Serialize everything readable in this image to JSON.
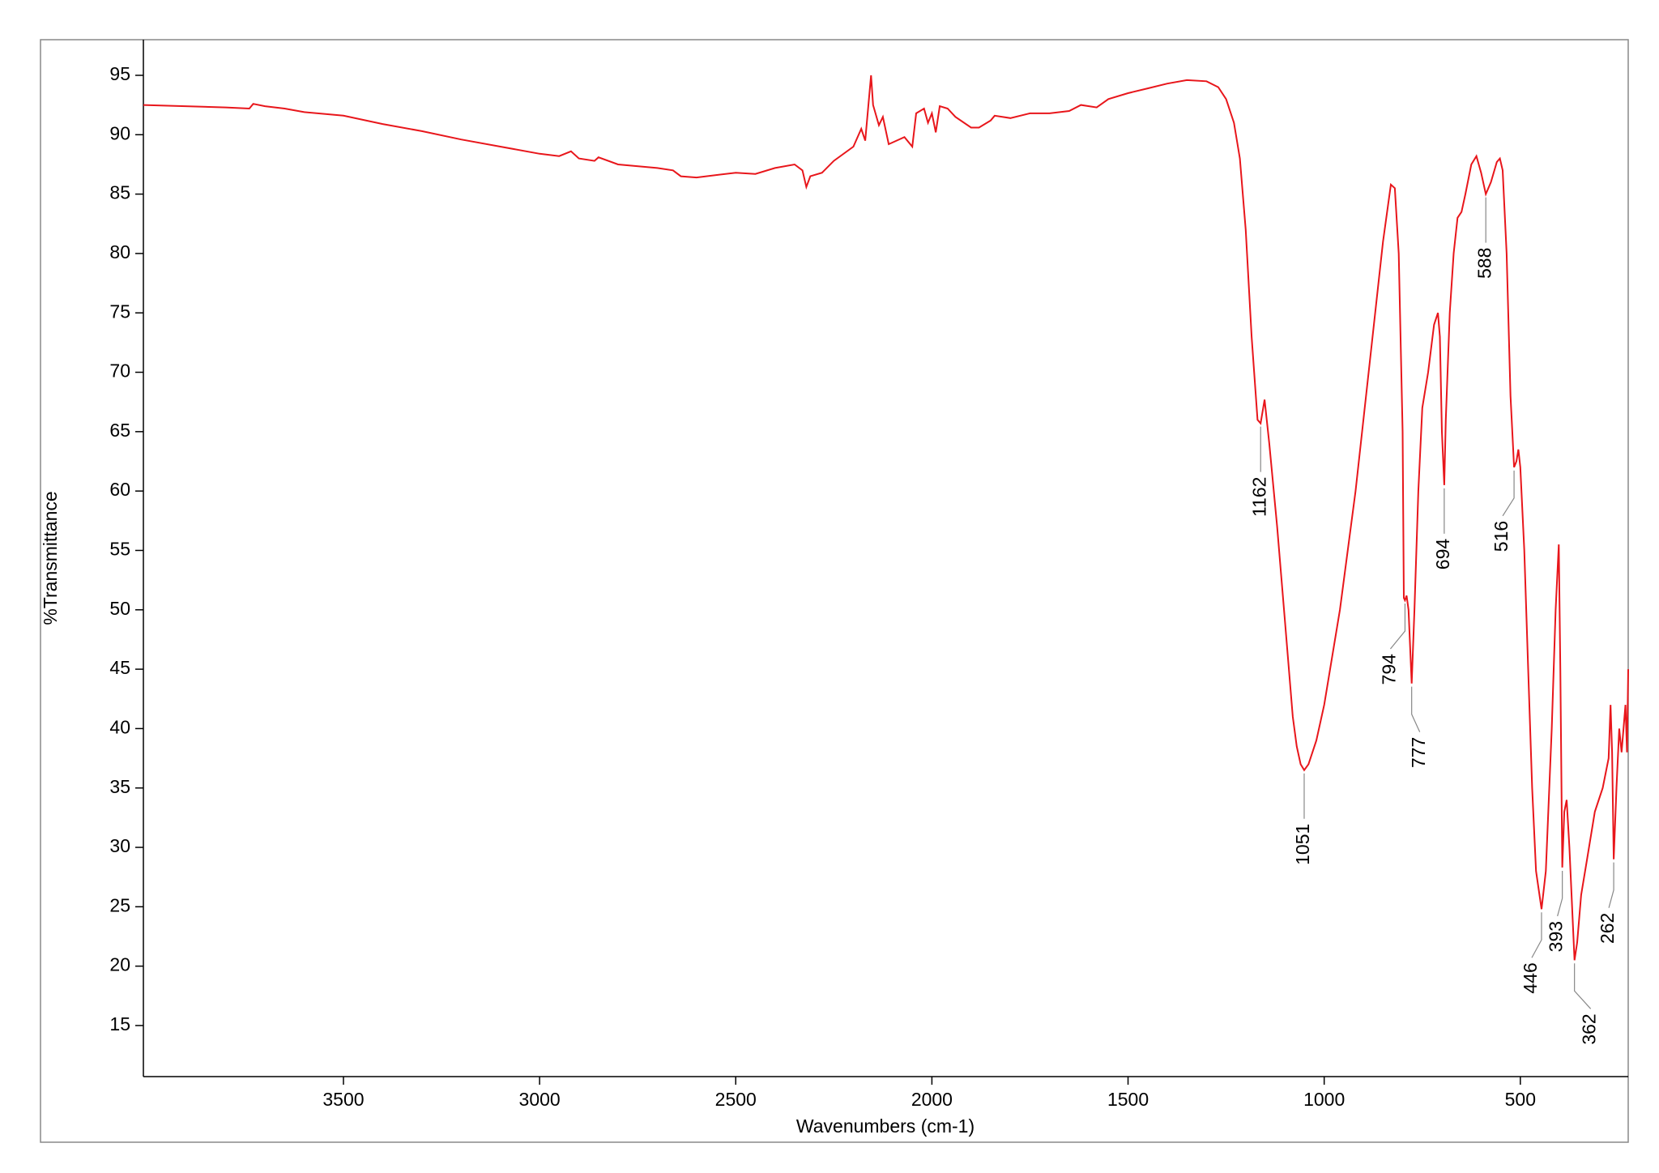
{
  "chart_data": {
    "type": "line",
    "xlabel": "Wavenumbers (cm-1)",
    "ylabel": "%Transmittance",
    "xlim": [
      4010,
      225
    ],
    "ylim": [
      10.7,
      98
    ],
    "xticks": [
      3500,
      3000,
      2500,
      2000,
      1500,
      1000,
      500
    ],
    "yticks": [
      15,
      20,
      25,
      30,
      35,
      40,
      45,
      50,
      55,
      60,
      65,
      70,
      75,
      80,
      85,
      90,
      95
    ],
    "peaks": [
      1162,
      1051,
      794,
      777,
      694,
      588,
      516,
      446,
      393,
      362,
      262
    ],
    "series": [
      {
        "color": "#e8161b",
        "x": [
          4010,
          3800,
          3740,
          3730,
          3700,
          3650,
          3600,
          3500,
          3400,
          3300,
          3200,
          3100,
          3000,
          2950,
          2920,
          2900,
          2860,
          2850,
          2800,
          2700,
          2660,
          2640,
          2600,
          2500,
          2450,
          2400,
          2350,
          2330,
          2320,
          2310,
          2280,
          2250,
          2200,
          2180,
          2170,
          2155,
          2150,
          2135,
          2125,
          2110,
          2090,
          2070,
          2050,
          2040,
          2020,
          2010,
          2000,
          1990,
          1980,
          1960,
          1940,
          1900,
          1880,
          1850,
          1840,
          1800,
          1750,
          1700,
          1650,
          1620,
          1580,
          1550,
          1500,
          1450,
          1400,
          1350,
          1300,
          1270,
          1250,
          1230,
          1215,
          1200,
          1185,
          1170,
          1162,
          1152,
          1140,
          1120,
          1100,
          1080,
          1070,
          1060,
          1051,
          1040,
          1020,
          1000,
          960,
          920,
          880,
          850,
          830,
          820,
          810,
          800,
          797,
          794,
          790,
          785,
          777,
          770,
          760,
          750,
          735,
          720,
          710,
          705,
          700,
          694,
          690,
          680,
          670,
          660,
          650,
          640,
          625,
          612,
          600,
          588,
          575,
          560,
          552,
          545,
          535,
          525,
          516,
          510,
          505,
          500,
          490,
          480,
          470,
          460,
          446,
          435,
          420,
          410,
          402,
          398,
          393,
          388,
          382,
          375,
          362,
          355,
          345,
          330,
          310,
          290,
          275,
          270,
          266,
          262,
          255,
          248,
          242,
          237,
          232,
          228,
          225
        ],
        "values": [
          92.5,
          92.3,
          92.2,
          92.6,
          92.4,
          92.2,
          91.9,
          91.6,
          90.9,
          90.3,
          89.6,
          89.0,
          88.4,
          88.2,
          88.6,
          88.0,
          87.8,
          88.1,
          87.5,
          87.2,
          87.0,
          86.5,
          86.4,
          86.8,
          86.7,
          87.2,
          87.5,
          87.0,
          85.6,
          86.5,
          86.8,
          87.8,
          89.0,
          90.5,
          89.5,
          95.0,
          92.5,
          90.8,
          91.5,
          89.2,
          89.5,
          89.8,
          89.0,
          91.8,
          92.2,
          91.0,
          91.8,
          90.2,
          92.4,
          92.2,
          91.5,
          90.6,
          90.6,
          91.2,
          91.6,
          91.4,
          91.8,
          91.8,
          92.0,
          92.5,
          92.3,
          93.0,
          93.5,
          93.9,
          94.3,
          94.6,
          94.5,
          94.0,
          93.0,
          91.0,
          88.0,
          82.0,
          73.0,
          66.0,
          65.7,
          67.7,
          64.0,
          57.0,
          49.0,
          41.0,
          38.5,
          37.0,
          36.5,
          37.0,
          39.0,
          42.0,
          50.0,
          60.0,
          72.0,
          81.0,
          85.8,
          85.5,
          80.0,
          65.0,
          51.0,
          50.8,
          51.2,
          50.0,
          43.8,
          50.0,
          60.0,
          67.0,
          70.0,
          74.0,
          75.0,
          73.0,
          65.0,
          60.5,
          66.0,
          75.0,
          80.0,
          83.0,
          83.5,
          85.0,
          87.5,
          88.2,
          86.8,
          85.0,
          86.0,
          87.7,
          88.0,
          87.0,
          80.0,
          68.0,
          62.0,
          62.5,
          63.5,
          62.0,
          55.0,
          45.0,
          35.0,
          28.0,
          24.8,
          28.0,
          40.0,
          50.0,
          55.5,
          45.0,
          28.3,
          33.0,
          34.0,
          30.0,
          20.5,
          22.0,
          26.0,
          29.0,
          33.0,
          35.0,
          37.5,
          42.0,
          38.0,
          29.0,
          35.0,
          40.0,
          38.0,
          40.0,
          42.0,
          38.0,
          45.0
        ]
      }
    ]
  }
}
